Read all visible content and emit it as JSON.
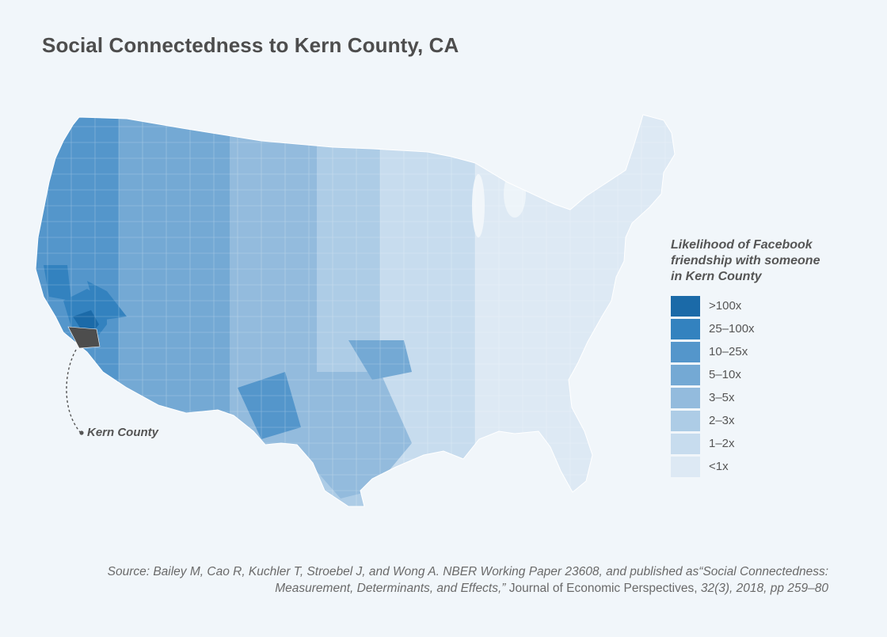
{
  "title": "Social Connectedness to Kern County, CA",
  "legend": {
    "title_lines": [
      "Likelihood of Facebook",
      "friendship with someone",
      "in Kern County"
    ],
    "items": [
      {
        "label": ">100x",
        "color": "#1b6aa8"
      },
      {
        "label": "25–100x",
        "color": "#3382bf"
      },
      {
        "label": "10–25x",
        "color": "#5496cb"
      },
      {
        "label": "5–10x",
        "color": "#74a9d4"
      },
      {
        "label": "3–5x",
        "color": "#93bbdd"
      },
      {
        "label": "2–3x",
        "color": "#adcce6"
      },
      {
        "label": "1–2x",
        "color": "#c7dcee"
      },
      {
        "label": "<1x",
        "color": "#dde9f4"
      }
    ]
  },
  "callout": {
    "label": "Kern County",
    "color": "#4d4d4d"
  },
  "source": {
    "part1": "Source: Bailey M, Cao R, Kuchler T, Stroebel J, and Wong A. NBER Working Paper 23608, and published as“Social Connectedness: Measurement, Determinants, and Effects,”",
    "journal": " Journal of Economic Perspectives,",
    "part2": " 32(3), 2018, pp 259–80"
  }
}
